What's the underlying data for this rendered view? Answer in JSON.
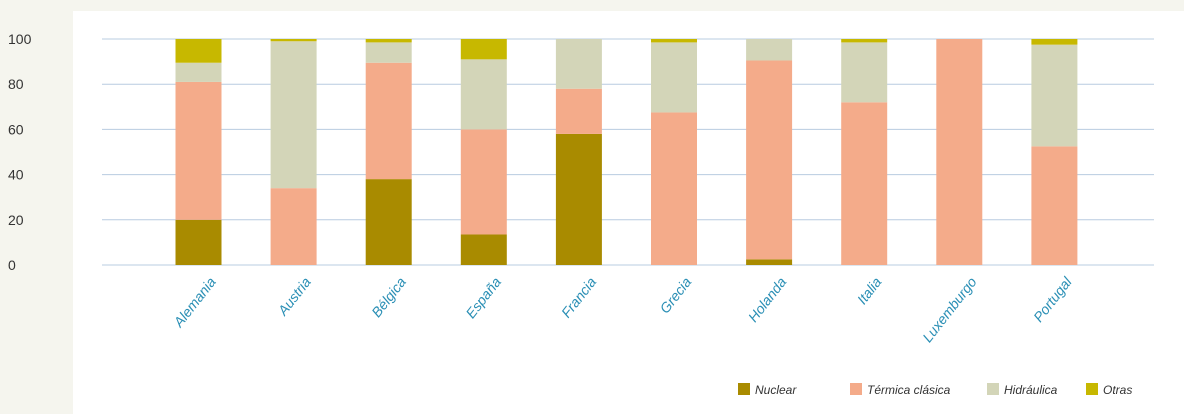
{
  "chart_data": {
    "type": "bar",
    "stacked": true,
    "categories": [
      "Alemania",
      "Austria",
      "Bélgica",
      "España",
      "Francia",
      "Grecia",
      "Holanda",
      "Italia",
      "Luxemburgo",
      "Portugal"
    ],
    "series": [
      {
        "name": "Nuclear",
        "color": "#a98b00",
        "values": [
          20,
          0,
          38,
          13.5,
          58,
          0,
          2.5,
          0,
          0,
          0
        ]
      },
      {
        "name": "Térmica clásica",
        "color": "#f4ab8a",
        "values": [
          61,
          34,
          51.5,
          46.5,
          20,
          67.5,
          88,
          72,
          100,
          52.5
        ]
      },
      {
        "name": "Hidráulica",
        "color": "#d3d5b8",
        "values": [
          8.5,
          65,
          9,
          31,
          22,
          31,
          9.5,
          26.5,
          0,
          45
        ]
      },
      {
        "name": "Otras",
        "color": "#c7b800",
        "values": [
          10.5,
          1,
          1.5,
          9,
          0,
          1.5,
          0,
          1.5,
          0,
          2.5
        ]
      }
    ],
    "yticks": [
      0,
      20,
      40,
      60,
      80,
      100
    ],
    "ylim": [
      0,
      100
    ],
    "grid": true,
    "legend_position": "bottom-right",
    "gridline_color": "#b8cce0"
  }
}
